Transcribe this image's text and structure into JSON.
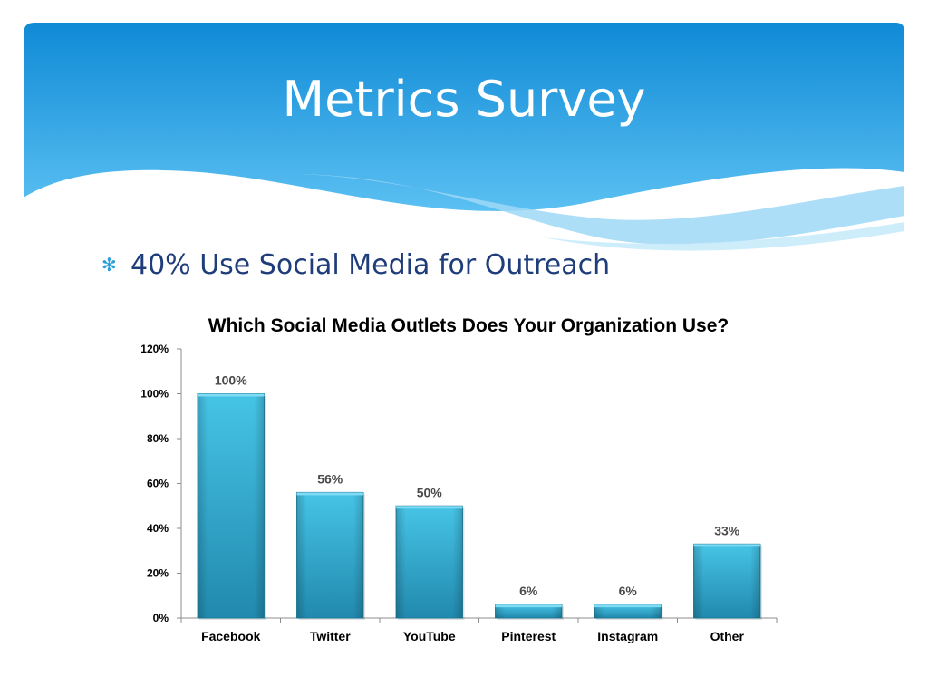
{
  "slide": {
    "title": "Metrics Survey",
    "bullet": "40% Use Social Media for Outreach",
    "bullet_icon": "asterisk-bullet-icon"
  },
  "colors": {
    "header_top": "#0f8ad6",
    "header_bottom": "#5bc0f2",
    "bar": "#2aa9cf",
    "bullet_text": "#1f3d7a"
  },
  "chart_data": {
    "type": "bar",
    "title": "Which Social Media Outlets Does Your Organization Use?",
    "categories": [
      "Facebook",
      "Twitter",
      "YouTube",
      "Pinterest",
      "Instagram",
      "Other"
    ],
    "values": [
      100,
      56,
      50,
      6,
      6,
      33
    ],
    "data_labels": [
      "100%",
      "56%",
      "50%",
      "6%",
      "6%",
      "33%"
    ],
    "yticks": [
      "0%",
      "20%",
      "40%",
      "60%",
      "80%",
      "100%",
      "120%"
    ],
    "ylim": [
      0,
      120
    ],
    "xlabel": "",
    "ylabel": "",
    "grid": false,
    "legend": "none"
  }
}
